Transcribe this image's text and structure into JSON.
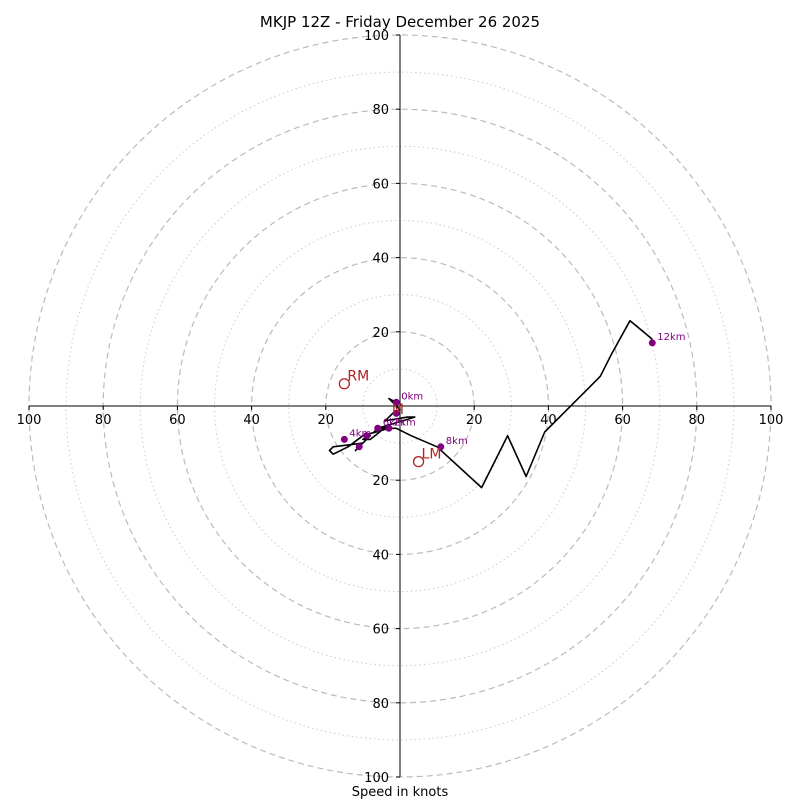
{
  "chart_data": {
    "type": "hodograph",
    "title": "MKJP 12Z - Friday December 26 2025",
    "xlabel": "Speed in knots",
    "axis_range": [
      -100,
      100
    ],
    "ring_major": [
      20,
      40,
      60,
      80,
      100
    ],
    "ring_minor": [
      10,
      30,
      50,
      70,
      90
    ],
    "x_ticks": [
      {
        "value": -100,
        "label": "100"
      },
      {
        "value": -80,
        "label": "80"
      },
      {
        "value": -60,
        "label": "60"
      },
      {
        "value": -40,
        "label": "40"
      },
      {
        "value": -20,
        "label": "20"
      },
      {
        "value": 20,
        "label": "20"
      },
      {
        "value": 40,
        "label": "40"
      },
      {
        "value": 60,
        "label": "60"
      },
      {
        "value": 80,
        "label": "80"
      },
      {
        "value": 100,
        "label": "100"
      }
    ],
    "y_ticks": [
      {
        "value": 100,
        "label": "100"
      },
      {
        "value": 80,
        "label": "80"
      },
      {
        "value": 60,
        "label": "60"
      },
      {
        "value": 40,
        "label": "40"
      },
      {
        "value": 20,
        "label": "20"
      },
      {
        "value": -20,
        "label": "20"
      },
      {
        "value": -40,
        "label": "40"
      },
      {
        "value": -60,
        "label": "60"
      },
      {
        "value": -80,
        "label": "80"
      },
      {
        "value": -100,
        "label": "100"
      }
    ],
    "trace": {
      "u": [
        -1,
        -3,
        0,
        -2,
        -4,
        2,
        4,
        -6,
        -7,
        -3,
        -8,
        -10,
        -8,
        -11,
        -12,
        -10,
        -18,
        -19,
        -18,
        -14,
        -10,
        -3,
        -1,
        3,
        10,
        22,
        29,
        34,
        39,
        48,
        50,
        54,
        57,
        62,
        68
      ],
      "v": [
        1,
        2,
        -1,
        -2,
        -4,
        -3,
        -3,
        -6,
        -7,
        -5,
        -9,
        -9,
        -8,
        -11,
        -12,
        -10,
        -11,
        -12,
        -13,
        -11,
        -8,
        -6,
        -6,
        -8,
        -11,
        -22,
        -8,
        -19,
        -7,
        2,
        4,
        8,
        14,
        23,
        18
      ]
    },
    "height_markers": [
      {
        "label": "0km",
        "u": -1,
        "v": 1
      },
      {
        "label": "",
        "u": -1,
        "v": -2
      },
      {
        "label": "2km",
        "u": -3,
        "v": -6
      },
      {
        "label": "",
        "u": -9,
        "v": -8
      },
      {
        "label": "6km",
        "u": -6,
        "v": -6
      },
      {
        "label": "",
        "u": -11,
        "v": -11
      },
      {
        "label": "4km",
        "u": -15,
        "v": -9
      },
      {
        "label": "8km",
        "u": 11,
        "v": -11
      },
      {
        "label": "12km",
        "u": 68,
        "v": 17
      }
    ],
    "motion_markers": [
      {
        "label": "RM",
        "u": -15,
        "v": 6
      },
      {
        "label": "LM",
        "u": 5,
        "v": -15
      },
      {
        "label": "M",
        "u": -3,
        "v": -3
      }
    ]
  }
}
